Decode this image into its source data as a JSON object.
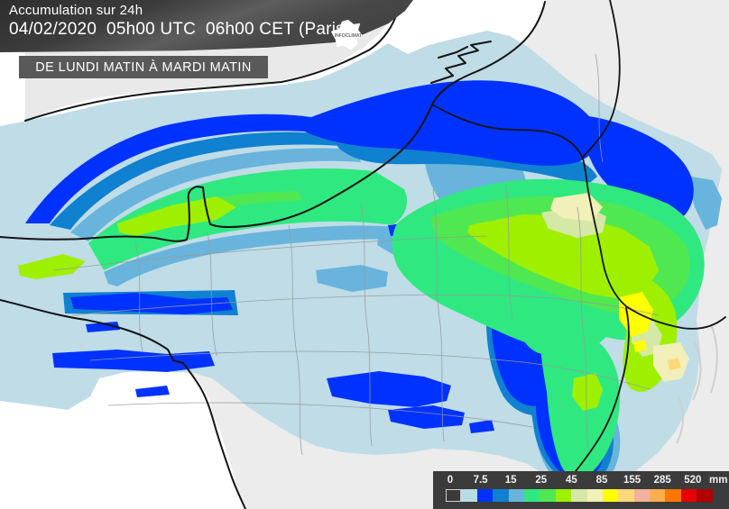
{
  "header": {
    "title": "Accumulation sur 24h",
    "datetime": "04/02/2020  05h00 UTC  06h00 CET (Paris)"
  },
  "period_banner": {
    "label": "DE LUNDI MATIN À MARDI MATIN"
  },
  "logo": {
    "text": "INFOCLIMAT"
  },
  "legend": {
    "unit": "mm",
    "tick_labels": [
      "0",
      "7.5",
      "15",
      "25",
      "45",
      "85",
      "155",
      "285",
      "520"
    ],
    "swatch_colors": [
      "none",
      "#b8dce6",
      "#0032ff",
      "#1080d0",
      "#68b4dc",
      "#30e880",
      "#50e850",
      "#9ef000",
      "#d6e8a6",
      "#f0f0b8",
      "#ffff00",
      "#ffd878",
      "#f2b09e",
      "#ffae4e",
      "#ff7700",
      "#e60000",
      "#b00000"
    ],
    "panel_color": "#3b3b3b"
  },
  "map": {
    "sea_color": "#ffffff",
    "land_color": "#ececec",
    "coastline_color": "#141414",
    "department_border_color": "#999999",
    "precipitation_palette": {
      "very_light": "#bfdce7",
      "light": "#0032ff",
      "light_medium": "#1080d0",
      "medium": "#68b4dc",
      "moderate": "#30e880",
      "moderate_high": "#50e850",
      "high": "#9ef000",
      "pale_green": "#d6e8a6",
      "cream": "#f0f0b8",
      "very_high": "#ffff00"
    }
  }
}
